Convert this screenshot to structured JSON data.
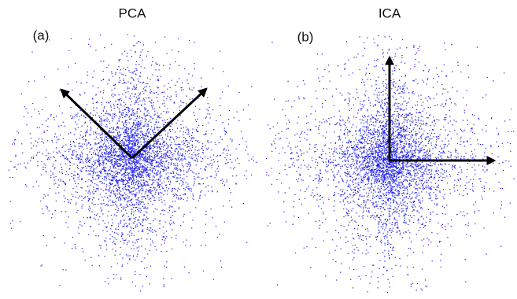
{
  "panels": [
    {
      "title": "PCA",
      "label": "(a)"
    },
    {
      "title": "ICA",
      "label": "(b)"
    }
  ]
}
